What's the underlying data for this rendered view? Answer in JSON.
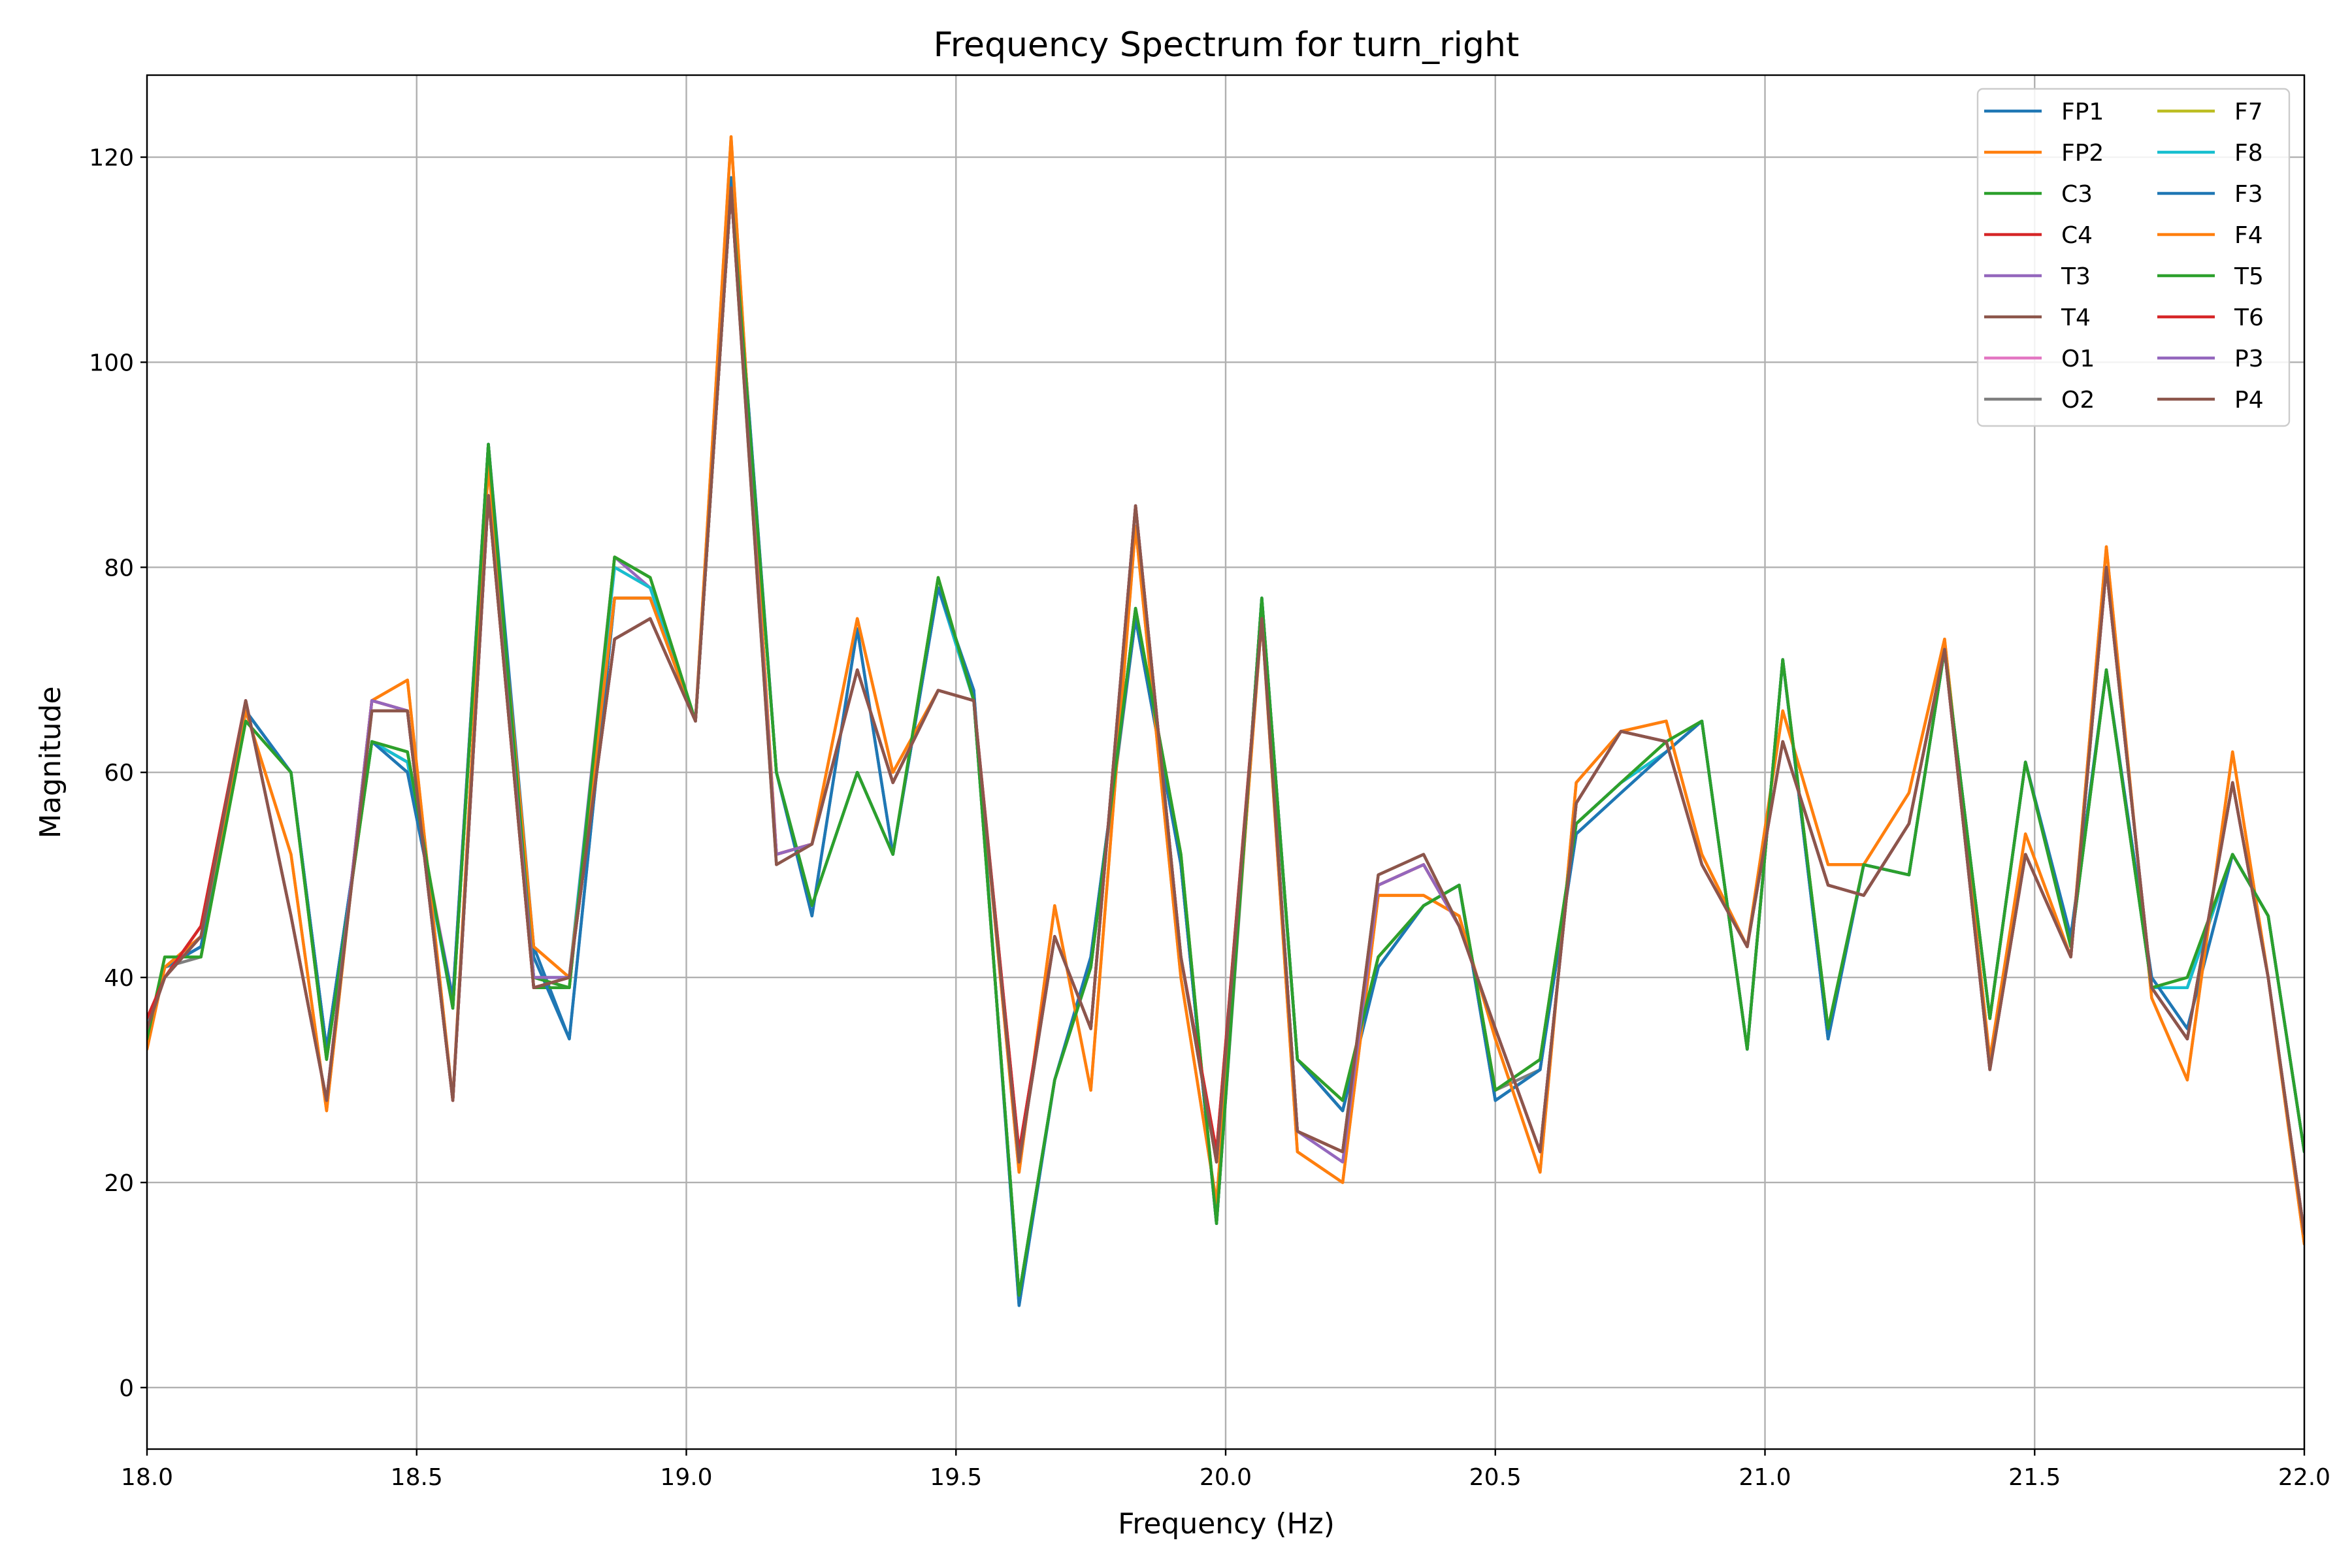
{
  "chart_data": {
    "type": "line",
    "title": "Frequency Spectrum for turn_right",
    "xlabel": "Frequency (Hz)",
    "ylabel": "Magnitude",
    "xlim": [
      18.0,
      22.0
    ],
    "ylim": [
      -6,
      128
    ],
    "grid": true,
    "legend_position": "top-right",
    "legend_columns": 2,
    "x_ticks": [
      18.0,
      18.5,
      19.0,
      19.5,
      20.0,
      20.5,
      21.0,
      21.5,
      22.0
    ],
    "x_tick_labels": [
      "18.0",
      "18.5",
      "19.0",
      "19.5",
      "20.0",
      "20.5",
      "21.0",
      "21.5",
      "22.0"
    ],
    "y_ticks": [
      0,
      20,
      40,
      60,
      80,
      100,
      120
    ],
    "y_tick_labels": [
      "0",
      "20",
      "40",
      "60",
      "80",
      "100",
      "120"
    ],
    "x": [
      18.0,
      18.033,
      18.1,
      18.183,
      18.267,
      18.333,
      18.417,
      18.483,
      18.567,
      18.633,
      18.717,
      18.783,
      18.867,
      18.933,
      19.017,
      19.083,
      19.167,
      19.233,
      19.317,
      19.383,
      19.467,
      19.533,
      19.617,
      19.683,
      19.75,
      19.833,
      19.917,
      19.983,
      20.067,
      20.133,
      20.217,
      20.283,
      20.367,
      20.433,
      20.5,
      20.583,
      20.65,
      20.733,
      20.817,
      20.883,
      20.967,
      21.033,
      21.117,
      21.183,
      21.267,
      21.333,
      21.417,
      21.483,
      21.567,
      21.633,
      21.717,
      21.783,
      21.867,
      21.933,
      22.0
    ],
    "series": [
      {
        "name": "FP1",
        "color": "#1f77b4",
        "values": [
          34,
          41,
          43,
          66,
          60,
          33,
          63,
          60,
          38,
          92,
          43,
          34,
          77,
          77,
          65,
          118,
          60,
          46,
          74,
          52,
          78,
          68,
          8,
          30,
          42,
          75,
          51,
          16,
          77,
          32,
          27,
          41,
          47,
          49,
          28,
          31,
          54,
          58,
          62,
          65,
          33,
          71,
          34,
          51,
          50,
          72,
          36,
          61,
          44,
          70,
          40,
          35,
          52,
          46,
          23
        ]
      },
      {
        "name": "FP2",
        "color": "#ff7f0e",
        "values": [
          33,
          41,
          44,
          66,
          52,
          27,
          67,
          69,
          28,
          90,
          43,
          40,
          77,
          77,
          65,
          122,
          52,
          53,
          75,
          60,
          68,
          67,
          21,
          47,
          29,
          84,
          40,
          18,
          75,
          23,
          20,
          48,
          48,
          46,
          34,
          21,
          59,
          64,
          65,
          52,
          43,
          66,
          51,
          51,
          58,
          73,
          32,
          54,
          42,
          82,
          38,
          30,
          62,
          40,
          14
        ]
      },
      {
        "name": "C3",
        "color": "#2ca02c",
        "values": [
          34,
          42,
          42,
          65,
          60,
          32,
          63,
          62,
          37,
          92,
          39,
          39,
          81,
          79,
          65,
          117,
          60,
          47,
          60,
          52,
          79,
          67,
          9,
          30,
          41,
          76,
          52,
          16,
          77,
          32,
          28,
          42,
          47,
          49,
          29,
          32,
          55,
          59,
          63,
          65,
          33,
          71,
          35,
          51,
          50,
          72,
          36,
          61,
          43,
          70,
          39,
          40,
          52,
          46,
          23
        ]
      },
      {
        "name": "C4",
        "color": "#d62728",
        "values": [
          36,
          40,
          45,
          67,
          46,
          28,
          67,
          66,
          28,
          87,
          39,
          40,
          73,
          75,
          65,
          117,
          52,
          53,
          70,
          59,
          68,
          67,
          23,
          44,
          35,
          86,
          42,
          23,
          75,
          25,
          23,
          49,
          51,
          45,
          35,
          23,
          57,
          64,
          63,
          51,
          43,
          63,
          49,
          48,
          55,
          72,
          31,
          52,
          42,
          80,
          39,
          34,
          59,
          40,
          15
        ]
      },
      {
        "name": "T3",
        "color": "#9467bd",
        "values": [
          35,
          41,
          43,
          66,
          60,
          33,
          63,
          61,
          37,
          92,
          40,
          40,
          81,
          78,
          65,
          117,
          60,
          47,
          60,
          52,
          78,
          67,
          9,
          30,
          41,
          76,
          51,
          16,
          77,
          32,
          27,
          41,
          47,
          49,
          28,
          31,
          55,
          59,
          62,
          65,
          33,
          71,
          34,
          51,
          50,
          72,
          36,
          61,
          43,
          70,
          39,
          39,
          52,
          46,
          23
        ]
      },
      {
        "name": "T4",
        "color": "#8c564b",
        "values": [
          35,
          40,
          44,
          67,
          46,
          28,
          66,
          66,
          28,
          87,
          39,
          40,
          73,
          75,
          65,
          117,
          51,
          53,
          70,
          59,
          68,
          67,
          22,
          44,
          35,
          86,
          42,
          22,
          75,
          25,
          23,
          50,
          52,
          45,
          35,
          23,
          57,
          64,
          63,
          51,
          43,
          63,
          49,
          48,
          55,
          72,
          31,
          52,
          42,
          80,
          39,
          34,
          59,
          40,
          15
        ]
      },
      {
        "name": "O1",
        "color": "#e377c2",
        "values": [
          35,
          41,
          43,
          66,
          60,
          33,
          63,
          61,
          38,
          92,
          40,
          39,
          80,
          78,
          65,
          117,
          60,
          47,
          60,
          52,
          78,
          67,
          9,
          30,
          41,
          76,
          51,
          16,
          77,
          32,
          27,
          42,
          47,
          49,
          28,
          31,
          55,
          59,
          62,
          65,
          33,
          71,
          34,
          51,
          50,
          72,
          36,
          61,
          43,
          70,
          39,
          39,
          52,
          46,
          23
        ]
      },
      {
        "name": "O2",
        "color": "#7f7f7f",
        "values": [
          35,
          41,
          42,
          66,
          60,
          33,
          63,
          61,
          37,
          92,
          40,
          39,
          81,
          79,
          65,
          117,
          60,
          47,
          60,
          52,
          78,
          67,
          9,
          30,
          41,
          75,
          51,
          16,
          76,
          32,
          27,
          42,
          47,
          49,
          29,
          31,
          55,
          59,
          62,
          65,
          33,
          71,
          35,
          51,
          50,
          72,
          36,
          61,
          43,
          70,
          39,
          39,
          52,
          46,
          23
        ]
      },
      {
        "name": "F7",
        "color": "#bcbd22",
        "values": [
          34,
          42,
          42,
          65,
          60,
          32,
          63,
          62,
          37,
          92,
          40,
          39,
          81,
          79,
          65,
          117,
          60,
          47,
          60,
          52,
          79,
          67,
          9,
          30,
          41,
          76,
          52,
          16,
          77,
          32,
          28,
          42,
          47,
          49,
          29,
          32,
          55,
          59,
          63,
          65,
          33,
          71,
          35,
          51,
          50,
          72,
          36,
          61,
          43,
          70,
          39,
          40,
          52,
          46,
          23
        ]
      },
      {
        "name": "F8",
        "color": "#17becf",
        "values": [
          35,
          41,
          43,
          66,
          60,
          33,
          63,
          61,
          37,
          92,
          40,
          40,
          80,
          78,
          65,
          117,
          60,
          47,
          60,
          52,
          78,
          67,
          9,
          30,
          41,
          76,
          51,
          16,
          77,
          32,
          27,
          41,
          47,
          49,
          28,
          31,
          55,
          59,
          62,
          65,
          33,
          71,
          34,
          51,
          50,
          72,
          36,
          61,
          43,
          70,
          39,
          39,
          52,
          46,
          23
        ]
      },
      {
        "name": "F3",
        "color": "#1f77b4",
        "values": [
          34,
          41,
          43,
          66,
          60,
          33,
          63,
          60,
          38,
          92,
          42,
          34,
          77,
          77,
          65,
          118,
          60,
          46,
          74,
          52,
          78,
          68,
          8,
          30,
          42,
          75,
          51,
          16,
          77,
          32,
          27,
          41,
          47,
          49,
          28,
          31,
          54,
          58,
          62,
          65,
          33,
          71,
          34,
          51,
          50,
          72,
          36,
          61,
          44,
          70,
          40,
          35,
          52,
          46,
          23
        ]
      },
      {
        "name": "F4",
        "color": "#ff7f0e",
        "values": [
          33,
          41,
          44,
          66,
          52,
          27,
          67,
          69,
          28,
          90,
          43,
          40,
          77,
          77,
          65,
          122,
          52,
          53,
          75,
          60,
          68,
          67,
          21,
          47,
          29,
          84,
          40,
          18,
          75,
          23,
          20,
          48,
          48,
          46,
          34,
          21,
          59,
          64,
          65,
          52,
          43,
          66,
          51,
          51,
          58,
          73,
          32,
          54,
          42,
          82,
          38,
          30,
          62,
          40,
          14
        ]
      },
      {
        "name": "T5",
        "color": "#2ca02c",
        "values": [
          34,
          42,
          42,
          65,
          60,
          32,
          63,
          62,
          37,
          92,
          40,
          39,
          81,
          79,
          65,
          117,
          60,
          47,
          60,
          52,
          79,
          67,
          9,
          30,
          41,
          76,
          52,
          16,
          77,
          32,
          28,
          42,
          47,
          49,
          29,
          32,
          55,
          59,
          63,
          65,
          33,
          71,
          35,
          51,
          50,
          72,
          36,
          61,
          43,
          70,
          39,
          40,
          52,
          46,
          23
        ]
      },
      {
        "name": "T6",
        "color": "#d62728",
        "values": [
          36,
          40,
          45,
          67,
          46,
          28,
          67,
          66,
          28,
          87,
          39,
          40,
          73,
          75,
          65,
          117,
          52,
          53,
          70,
          59,
          68,
          67,
          23,
          44,
          35,
          86,
          42,
          23,
          75,
          25,
          23,
          49,
          51,
          45,
          35,
          23,
          57,
          64,
          63,
          51,
          43,
          63,
          49,
          48,
          55,
          72,
          31,
          52,
          42,
          80,
          39,
          34,
          59,
          40,
          15
        ]
      },
      {
        "name": "P3",
        "color": "#9467bd",
        "values": [
          35,
          40,
          44,
          67,
          46,
          28,
          67,
          66,
          28,
          87,
          40,
          40,
          73,
          75,
          65,
          117,
          52,
          53,
          70,
          59,
          68,
          67,
          22,
          44,
          35,
          86,
          42,
          22,
          75,
          25,
          22,
          49,
          51,
          45,
          35,
          23,
          57,
          64,
          63,
          51,
          43,
          63,
          49,
          48,
          55,
          72,
          31,
          52,
          42,
          80,
          39,
          34,
          59,
          40,
          15
        ]
      },
      {
        "name": "P4",
        "color": "#8c564b",
        "values": [
          35,
          40,
          44,
          67,
          46,
          28,
          66,
          66,
          28,
          87,
          39,
          40,
          73,
          75,
          65,
          117,
          51,
          53,
          70,
          59,
          68,
          67,
          22,
          44,
          35,
          86,
          42,
          22,
          75,
          25,
          23,
          50,
          52,
          45,
          35,
          23,
          57,
          64,
          63,
          51,
          43,
          63,
          49,
          48,
          55,
          72,
          31,
          52,
          42,
          80,
          39,
          34,
          59,
          40,
          15
        ]
      }
    ]
  }
}
